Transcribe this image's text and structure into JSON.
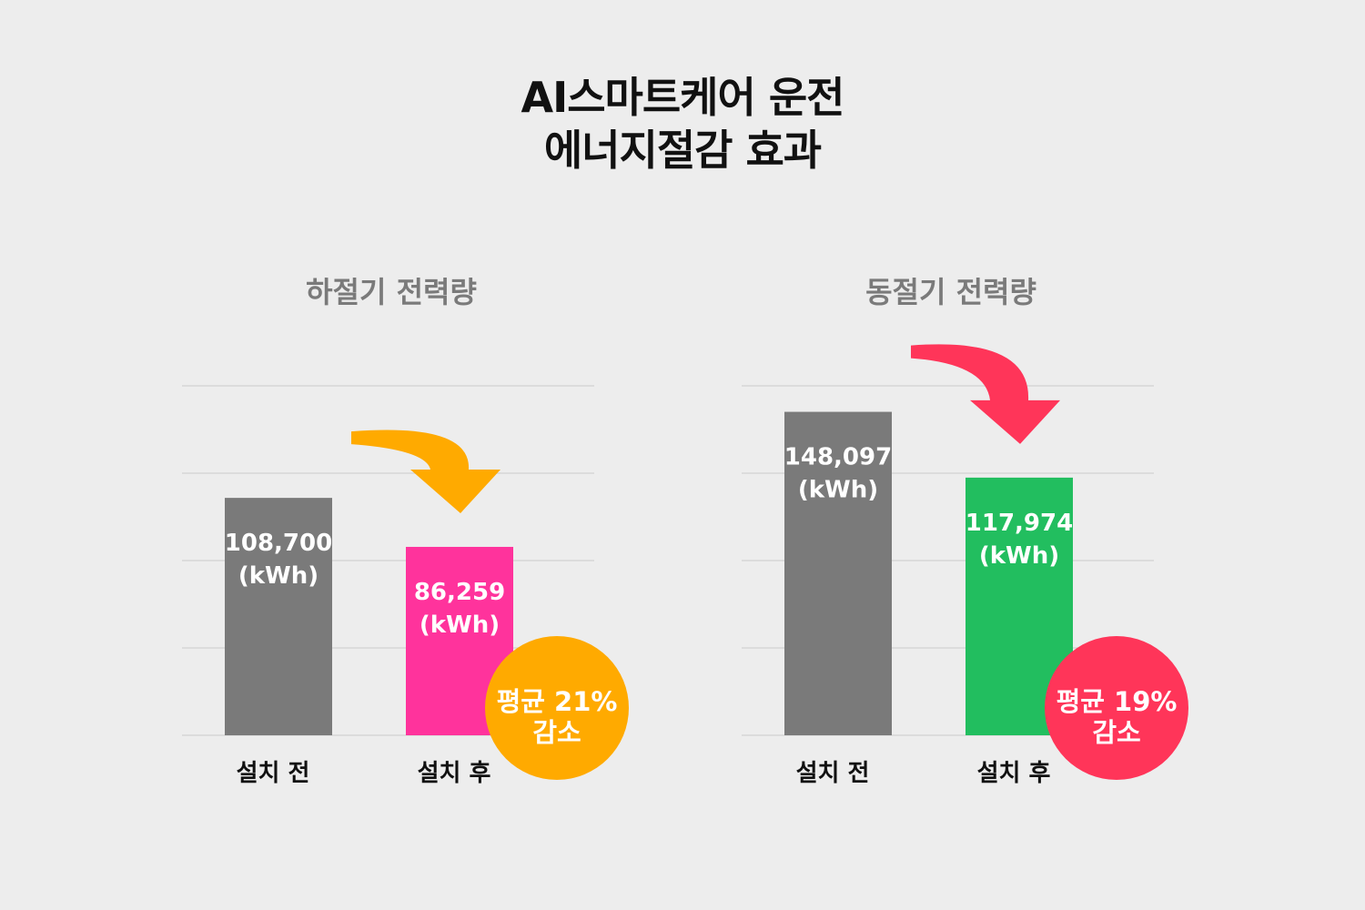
{
  "title": {
    "line1": "AI스마트케어 운전",
    "line2": "에너지절감 효과"
  },
  "chart_data": [
    {
      "type": "bar",
      "title": "하절기 전력량",
      "categories": [
        "설치 전",
        "설치 후"
      ],
      "values": [
        108700,
        86259
      ],
      "value_labels": [
        "108,700",
        "86,259"
      ],
      "unit_label": "(kWh)",
      "ylim": [
        0,
        160000
      ],
      "grid": true,
      "bar_colors": [
        "#7a7a7a",
        "#ff339c"
      ],
      "arrow_color": "#ffaa00",
      "badge": {
        "line1": "평균 21%",
        "line2": "감소",
        "color": "#ffaa00"
      }
    },
    {
      "type": "bar",
      "title": "동절기 전력량",
      "categories": [
        "설치 전",
        "설치 후"
      ],
      "values": [
        148097,
        117974
      ],
      "value_labels": [
        "148,097",
        "117,974"
      ],
      "unit_label": "(kWh)",
      "ylim": [
        0,
        160000
      ],
      "grid": true,
      "bar_colors": [
        "#7a7a7a",
        "#22be5f"
      ],
      "arrow_color": "#ff3559",
      "badge": {
        "line1": "평균 19%",
        "line2": "감소",
        "color": "#ff3559"
      }
    }
  ]
}
